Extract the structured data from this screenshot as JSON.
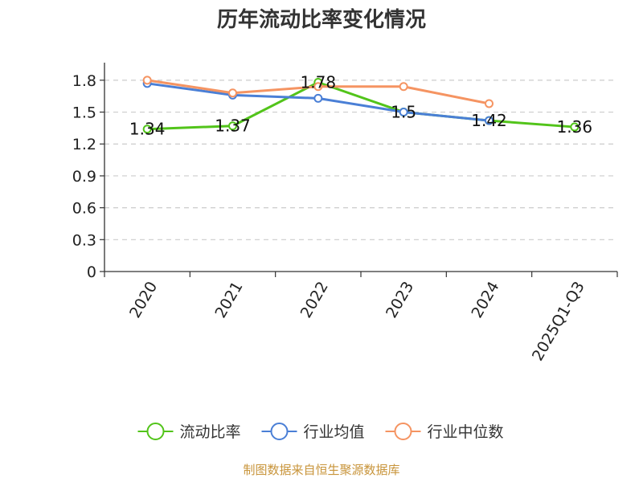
{
  "chart_data": {
    "type": "line",
    "title": "历年流动比率变化情况",
    "xlabel": "",
    "ylabel": "",
    "categories": [
      "2020",
      "2021",
      "2022",
      "2023",
      "2024",
      "2025Q1-Q3"
    ],
    "ylim": [
      0,
      1.95
    ],
    "yticks": [
      0,
      0.3,
      0.6,
      0.9,
      1.2,
      1.5,
      1.8
    ],
    "ytick_labels": [
      "0",
      "0.3",
      "0.6",
      "0.9",
      "1.2",
      "1.5",
      "1.8"
    ],
    "grid": true,
    "legend_position": "bottom",
    "series": [
      {
        "name": "流动比率",
        "color": "#52c41a",
        "values": [
          1.34,
          1.37,
          1.78,
          1.5,
          1.42,
          1.36
        ],
        "labels": [
          "1.34",
          "1.37",
          "1.78",
          "1.5",
          "1.42",
          "1.36"
        ]
      },
      {
        "name": "行业均值",
        "color": "#4a7fd6",
        "values": [
          1.77,
          1.66,
          1.63,
          1.5,
          1.42,
          null
        ]
      },
      {
        "name": "行业中位数",
        "color": "#f59462",
        "values": [
          1.8,
          1.68,
          1.74,
          1.74,
          1.58,
          null
        ]
      }
    ],
    "source": "制图数据来自恒生聚源数据库"
  }
}
